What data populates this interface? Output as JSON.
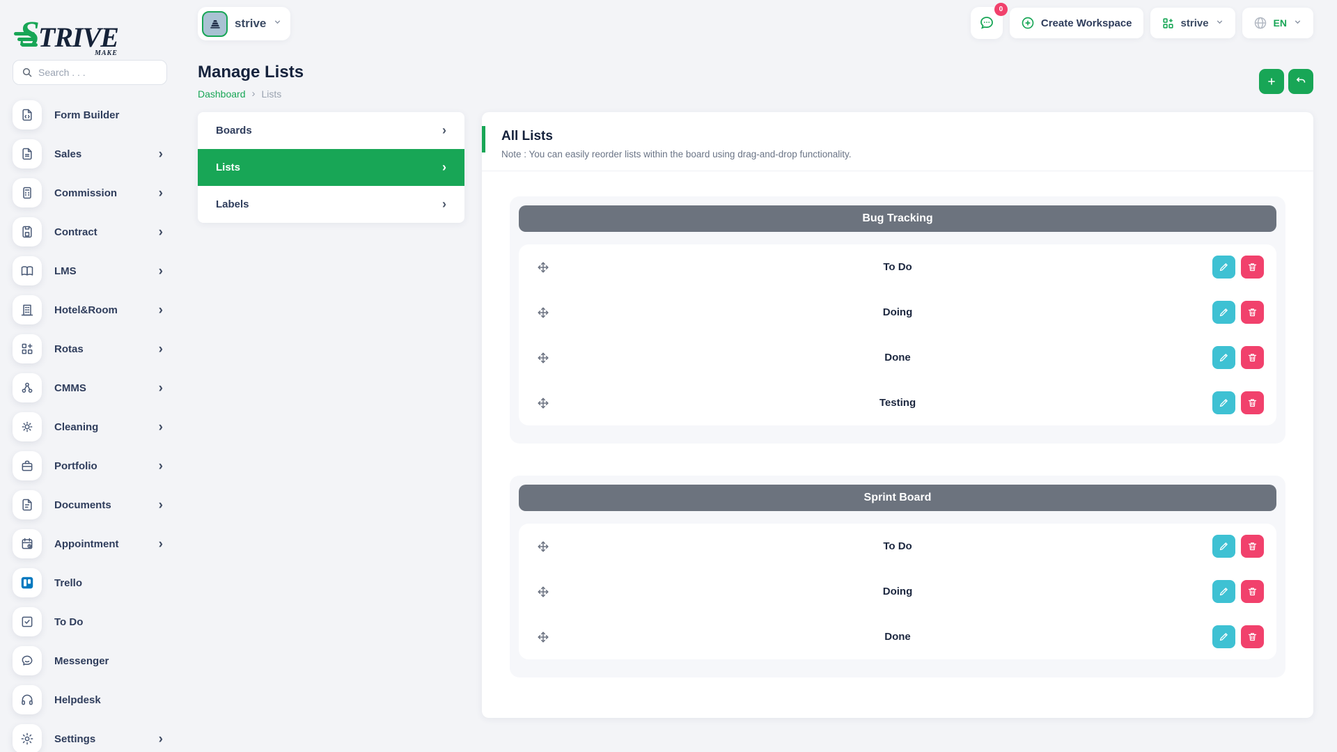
{
  "brand": {
    "logo_s": "S",
    "logo_rest": "TRIVE",
    "logo_sub": "MAKE"
  },
  "search": {
    "placeholder": "Search . . ."
  },
  "sidebar": {
    "items": [
      {
        "label": "Form Builder",
        "icon": "form-builder",
        "chevron": false
      },
      {
        "label": "Sales",
        "icon": "sales",
        "chevron": true
      },
      {
        "label": "Commission",
        "icon": "calculator",
        "chevron": true
      },
      {
        "label": "Contract",
        "icon": "contract",
        "chevron": true
      },
      {
        "label": "LMS",
        "icon": "book",
        "chevron": true
      },
      {
        "label": "Hotel&Room",
        "icon": "building",
        "chevron": true
      },
      {
        "label": "Rotas",
        "icon": "grid-plus",
        "chevron": true
      },
      {
        "label": "CMMS",
        "icon": "nodes",
        "chevron": true
      },
      {
        "label": "Cleaning",
        "icon": "sun",
        "chevron": true
      },
      {
        "label": "Portfolio",
        "icon": "briefcase",
        "chevron": true
      },
      {
        "label": "Documents",
        "icon": "document",
        "chevron": true
      },
      {
        "label": "Appointment",
        "icon": "calendar",
        "chevron": true
      },
      {
        "label": "Trello",
        "icon": "trello",
        "chevron": false
      },
      {
        "label": "To Do",
        "icon": "check-square",
        "chevron": false
      },
      {
        "label": "Messenger",
        "icon": "chat",
        "chevron": false
      },
      {
        "label": "Helpdesk",
        "icon": "headphones",
        "chevron": false
      },
      {
        "label": "Settings",
        "icon": "gear",
        "chevron": true
      }
    ]
  },
  "topbar": {
    "workspace_chip": "strive",
    "chat_badge": "0",
    "create_workspace_label": "Create Workspace",
    "workspace_select": "strive",
    "language": "EN"
  },
  "page": {
    "title": "Manage Lists",
    "breadcrumb": {
      "home": "Dashboard",
      "separator": "›",
      "current": "Lists"
    }
  },
  "menu_card": {
    "items": [
      {
        "label": "Boards",
        "active": false
      },
      {
        "label": "Lists",
        "active": true
      },
      {
        "label": "Labels",
        "active": false
      }
    ]
  },
  "content": {
    "header": "All Lists",
    "note": "Note : You can easily reorder lists within the board using drag-and-drop functionality.",
    "boards": [
      {
        "name": "Bug Tracking",
        "lists": [
          "To Do",
          "Doing",
          "Done",
          "Testing"
        ]
      },
      {
        "name": "Sprint Board",
        "lists": [
          "To Do",
          "Doing",
          "Done"
        ]
      }
    ]
  },
  "colors": {
    "accent_green": "#18a656",
    "danger_pink": "#f1416c",
    "edit_cyan": "#3ec1d3",
    "board_header_slate": "#6c737e",
    "trello_blue": "#0079bf",
    "text_dark": "#15223c"
  }
}
